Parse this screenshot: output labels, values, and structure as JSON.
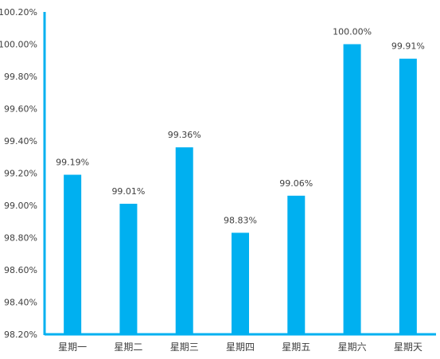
{
  "chart_data": {
    "type": "bar",
    "categories": [
      "星期一",
      "星期二",
      "星期三",
      "星期四",
      "星期五",
      "星期六",
      "星期天"
    ],
    "values": [
      99.19,
      99.01,
      99.36,
      98.83,
      99.06,
      100.0,
      99.91
    ],
    "data_labels": [
      "99.19%",
      "99.01%",
      "99.36%",
      "98.83%",
      "99.06%",
      "100.00%",
      "99.91%"
    ],
    "ylim": [
      98.2,
      100.2
    ],
    "y_ticks": [
      98.2,
      98.4,
      98.6,
      98.8,
      99.0,
      99.2,
      99.4,
      99.6,
      99.8,
      100.0,
      100.2
    ],
    "y_tick_labels": [
      "98.20%",
      "98.40%",
      "98.60%",
      "98.80%",
      "99.00%",
      "99.20%",
      "99.40%",
      "99.60%",
      "99.80%",
      "100.00%",
      "100.20%"
    ],
    "title": "",
    "xlabel": "",
    "ylabel": "",
    "grid": false,
    "legend": "none",
    "colors": {
      "bar": "#00B0F0",
      "axis": "#00B0F0",
      "text": "#404040"
    }
  }
}
